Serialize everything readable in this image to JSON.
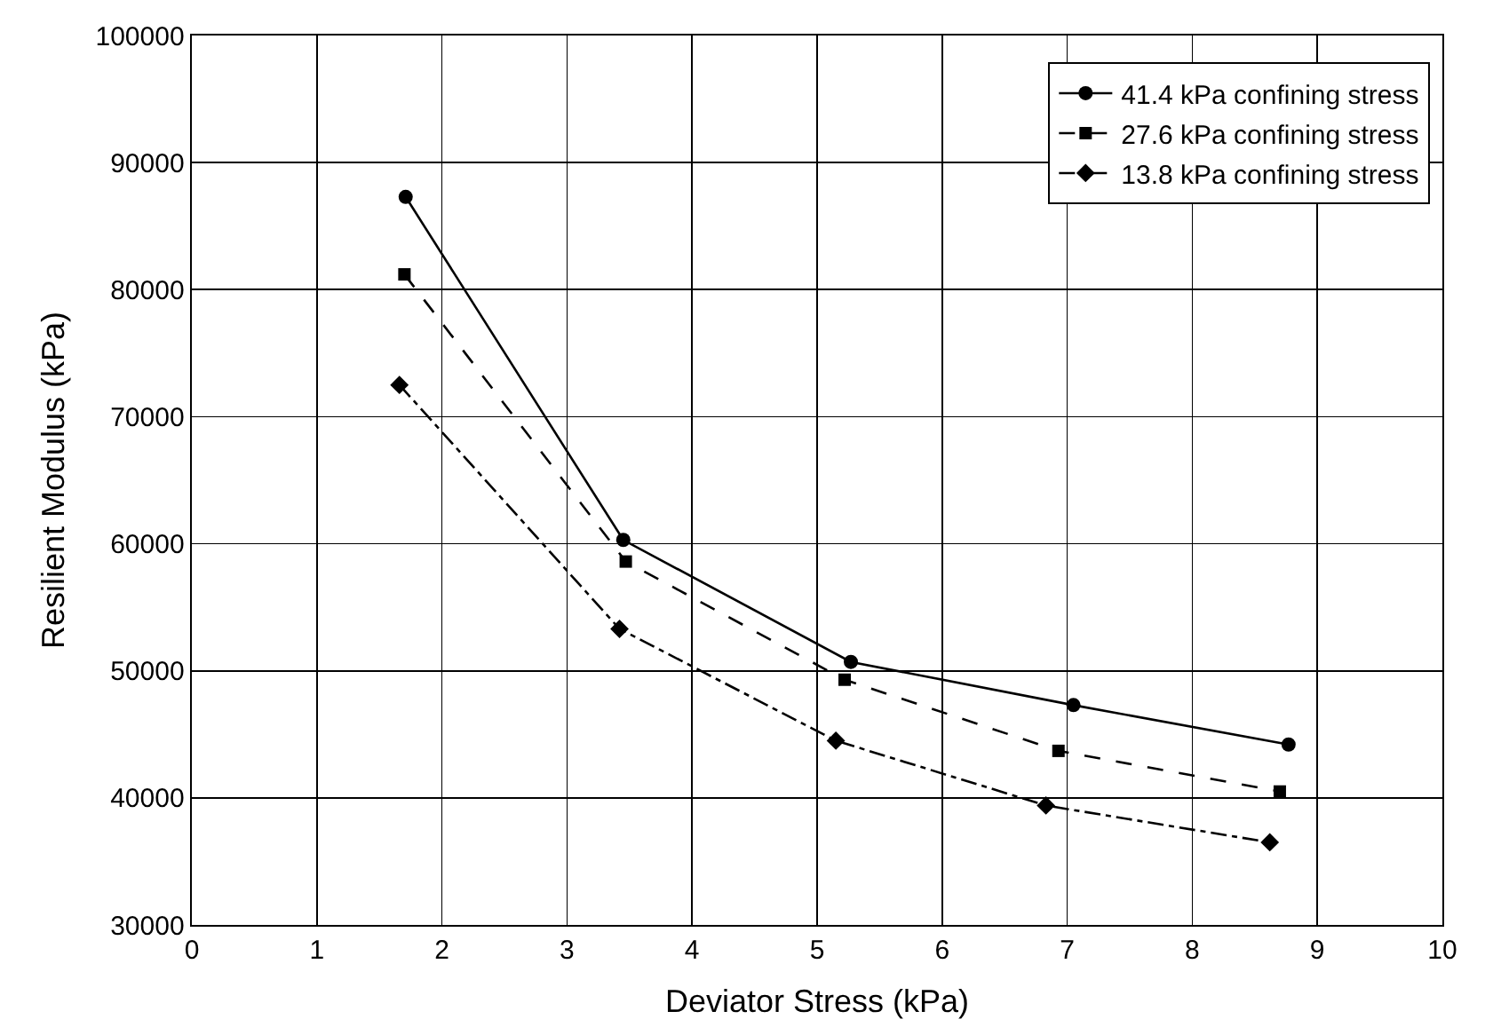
{
  "chart_data": {
    "type": "line",
    "xlabel": "Deviator Stress (kPa)",
    "ylabel": "Resilient Modulus (kPa)",
    "xlim": [
      0,
      10
    ],
    "xticks": [
      0,
      1,
      2,
      3,
      4,
      5,
      6,
      7,
      8,
      9,
      10
    ],
    "ylim": [
      30000,
      100000
    ],
    "yticks": [
      30000,
      40000,
      50000,
      60000,
      70000,
      80000,
      90000,
      100000
    ],
    "grid": true,
    "legend": "top right",
    "series": [
      {
        "name": "41.4 kPa confining stress",
        "color": "#000000",
        "marker": "circle",
        "line_style": "solid",
        "x": [
          1.71,
          3.45,
          5.27,
          7.05,
          8.77
        ],
        "values": [
          87300,
          60300,
          50700,
          47300,
          44200
        ]
      },
      {
        "name": "27.6 kPa confining stress",
        "color": "#000000",
        "marker": "square",
        "line_style": "dashed",
        "x": [
          1.7,
          3.47,
          5.22,
          6.93,
          8.7
        ],
        "values": [
          81200,
          58600,
          49300,
          43700,
          40500
        ]
      },
      {
        "name": "13.8 kPa confining stress",
        "color": "#000000",
        "marker": "diamond",
        "line_style": "dashdot",
        "x": [
          1.66,
          3.42,
          5.15,
          6.83,
          8.62
        ],
        "values": [
          72500,
          53300,
          44500,
          39400,
          36500
        ]
      }
    ]
  }
}
